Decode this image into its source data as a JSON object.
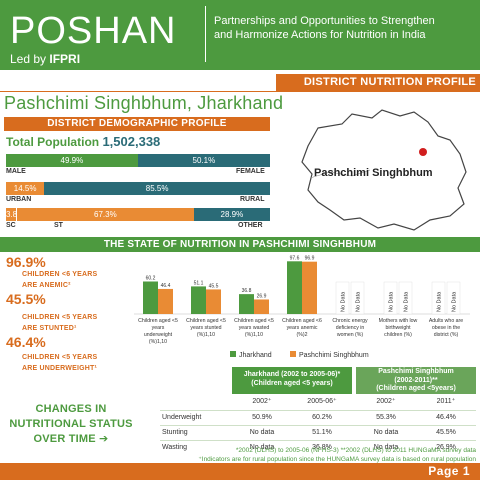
{
  "header": {
    "logo": "POSHAN",
    "led_by_prefix": "Led by ",
    "led_by_org": "IFPRI",
    "tagline_line1": "Partnerships and Opportunities to Strengthen",
    "tagline_line2": "and Harmonize Actions for Nutrition in India"
  },
  "profile_label": "DISTRICT NUTRITION PROFILE",
  "district_title": "Pashchimi Singhbhum, Jharkhand",
  "demographic": {
    "section_title": "DISTRICT DEMOGRAPHIC PROFILE",
    "total_label": "Total Population",
    "total_value": "1,502,338",
    "sex": {
      "left_pct": "49.9%",
      "right_pct": "50.1%",
      "left_value": 49.9,
      "left_label": "MALE",
      "right_label": "FEMALE"
    },
    "area": {
      "left_pct": "14.5%",
      "right_pct": "85.5%",
      "left_value": 14.5,
      "left_label": "URBAN",
      "right_label": "RURAL"
    },
    "caste": {
      "sc_pct": "3.8%",
      "st_pct": "67.3%",
      "other_pct": "28.9%",
      "sc_value": 3.8,
      "st_value": 67.3,
      "sc_label": "SC",
      "st_label": "ST",
      "other_label": "OTHER"
    }
  },
  "map": {
    "label": "Pashchimi Singhbhum"
  },
  "state_title": "THE STATE OF NUTRITION IN PASHCHIMI SINGHBHUM",
  "stats": [
    {
      "value": "96.9%",
      "line1": "CHILDREN <6 YEARS",
      "line2": "ARE ANEMIC²"
    },
    {
      "value": "45.5%",
      "line1": "CHILDREN <5 YEARS",
      "line2": "ARE STUNTED¹"
    },
    {
      "value": "46.4%",
      "line1": "CHILDREN <5 YEARS",
      "line2": "ARE UNDERWEIGHT¹"
    }
  ],
  "chart_data": {
    "type": "bar",
    "categories": [
      [
        "Children aged <5",
        "years",
        "underweight",
        "(%)1,10"
      ],
      [
        "Children aged <5",
        "years stunted",
        "(%)1,10"
      ],
      [
        "Children aged <5",
        "years wasted",
        "(%)1,10"
      ],
      [
        "Children aged <6",
        "years anemic",
        "(%)2"
      ],
      [
        "Chronic energy",
        "deficiency in",
        "women (%)"
      ],
      [
        "Mothers with low",
        "birthweight",
        "children (%)"
      ],
      [
        "Adults who are",
        "obese in the",
        "district (%)"
      ]
    ],
    "series": [
      {
        "name": "Jharkhand",
        "color": "#4d9a3f",
        "values": [
          60.2,
          51.1,
          36.8,
          97.6,
          null,
          null,
          null
        ],
        "labels": [
          "60.2",
          "51.1",
          "36.8",
          "97.6",
          "No Data",
          "No Data",
          "No Data"
        ]
      },
      {
        "name": "Pashchimi Singhbhum",
        "color": "#e98b34",
        "values": [
          46.4,
          45.5,
          26.9,
          96.9,
          null,
          null,
          null
        ],
        "labels": [
          "46.4",
          "45.5",
          "26.9",
          "96.9",
          "No Data",
          "No Data",
          "No Data"
        ]
      }
    ],
    "ylim": [
      0,
      100
    ],
    "legend": "bottom"
  },
  "changes_text": [
    "CHANGES IN",
    "NUTRITIONAL STATUS",
    "OVER TIME ➔"
  ],
  "table": {
    "group1": [
      "Jharkhand (2002 to 2005-06)*",
      "(Children aged <5 years)"
    ],
    "group2": [
      "Pashchimi Singhbhum",
      "(2002-2011)**",
      "(Children aged <5years)"
    ],
    "years": [
      "2002⁺",
      "2005-06⁺",
      "2002⁺",
      "2011⁺"
    ],
    "rows": [
      {
        "label": "Underweight",
        "cells": [
          "50.9%",
          "60.2%",
          "55.3%",
          "46.4%"
        ]
      },
      {
        "label": "Stunting",
        "cells": [
          "No data",
          "51.1%",
          "No data",
          "45.5%"
        ]
      },
      {
        "label": "Wasting",
        "cells": [
          "No data",
          "36.8%",
          "No data",
          "26.9%"
        ]
      }
    ]
  },
  "footnote1": "*2002 (DLHS) to 2005-06 (NFHS-3)     **2002 (DLHS) to 2011 HUNGaMA survey data",
  "footnote2": "⁺Indicators are for rural population since the HUNGaMA survey data is based on rural population",
  "page_label": "Page 1"
}
